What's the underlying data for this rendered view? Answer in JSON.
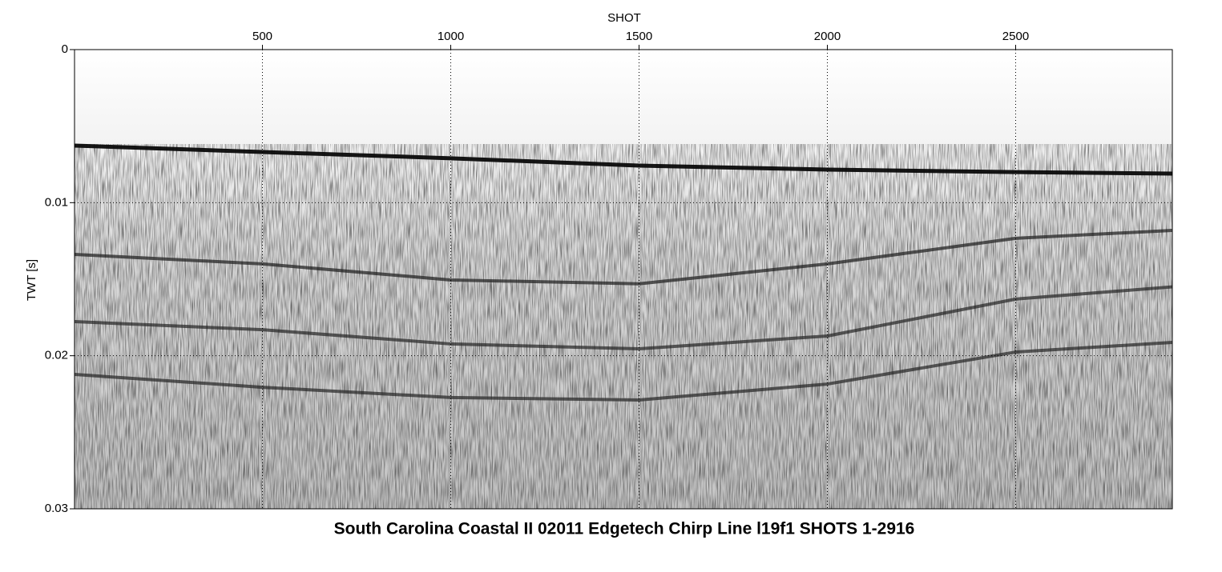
{
  "chart_data": {
    "type": "seismic",
    "title": "South Carolina Coastal II 02011 Edgetech Chirp Line l19f1 SHOTS 1-2916",
    "x_label": "SHOT",
    "y_label": "TWT [s]",
    "xlim": [
      1,
      2916
    ],
    "ylim": [
      0,
      0.03
    ],
    "xticks": [
      500,
      1000,
      1500,
      2000,
      2500
    ],
    "yticks": [
      0,
      0.01,
      0.02,
      0.03
    ],
    "y_inverted": true,
    "grid": true,
    "x": [
      1,
      500,
      1000,
      1500,
      2000,
      2500,
      2916
    ],
    "series": [
      {
        "color": "#0a0a0a",
        "values": [
          0.00627,
          0.00669,
          0.0071,
          0.00758,
          0.00784,
          0.008,
          0.0081
        ]
      },
      {
        "color": "#1a1a1a",
        "values": [
          0.01338,
          0.014,
          0.01505,
          0.0153,
          0.014,
          0.01233,
          0.01181
        ]
      },
      {
        "color": "#222222",
        "values": [
          0.01777,
          0.0183,
          0.01923,
          0.01955,
          0.01871,
          0.0163,
          0.0155
        ]
      },
      {
        "color": "#222222",
        "values": [
          0.02122,
          0.02206,
          0.02273,
          0.02289,
          0.02185,
          0.01976,
          0.01913
        ]
      }
    ]
  }
}
